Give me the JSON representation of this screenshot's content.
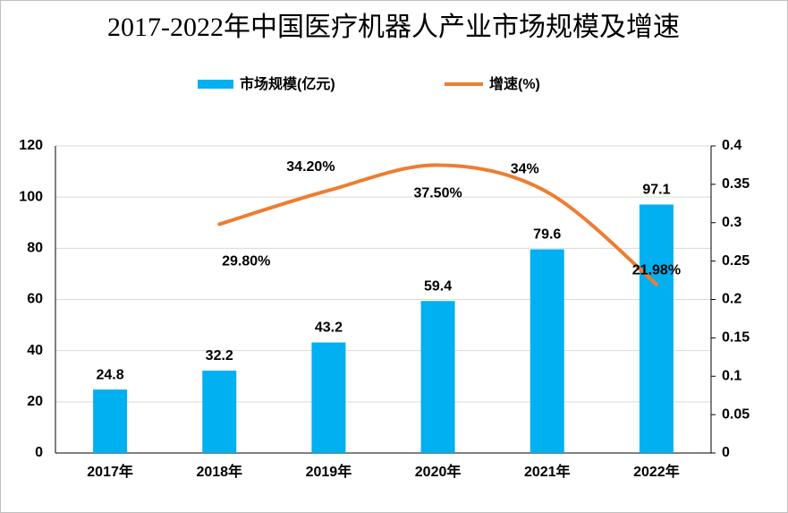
{
  "chart_data": {
    "type": "bar_line",
    "title": "2017-2022年中国医疗机器人产业市场规模及增速",
    "categories": [
      "2017年",
      "2018年",
      "2019年",
      "2020年",
      "2021年",
      "2022年"
    ],
    "series": [
      {
        "name": "市场规模(亿元)",
        "type": "bar",
        "color": "#00b0f0",
        "values": [
          24.8,
          32.2,
          43.2,
          59.4,
          79.6,
          97.1
        ]
      },
      {
        "name": "增速(%)",
        "type": "line",
        "axis": "y2",
        "color": "#ed7d31",
        "values": [
          null,
          0.298,
          0.342,
          0.375,
          0.34,
          0.2198
        ],
        "value_labels": [
          null,
          "29.80%",
          "34.20%",
          "37.50%",
          "34%",
          "21.98%"
        ]
      }
    ],
    "ylim": [
      0,
      120
    ],
    "yticks": [
      0,
      20,
      40,
      60,
      80,
      100,
      120
    ],
    "y2lim": [
      0,
      0.4
    ],
    "y2ticks": [
      0,
      0.05,
      0.1,
      0.15,
      0.2,
      0.25,
      0.3,
      0.35,
      0.4
    ],
    "grid": true,
    "legend": "top"
  }
}
